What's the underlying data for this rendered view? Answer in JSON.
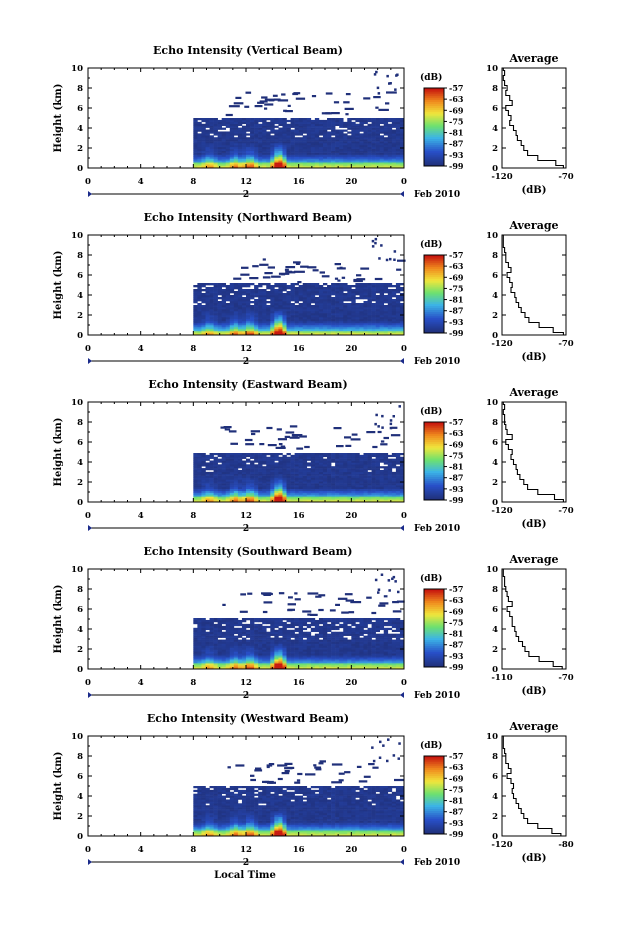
{
  "chart_data": [
    {
      "type": "heatmap",
      "title": "Echo Intensity (Vertical Beam)",
      "ylabel": "Height (km)",
      "y_ticks": [
        "0",
        "2",
        "4",
        "6",
        "8",
        "10"
      ],
      "x_ticks": [
        "0",
        "4",
        "8",
        "12",
        "16",
        "20",
        "0"
      ],
      "xlim": [
        0,
        24
      ],
      "ylim": [
        0,
        10
      ],
      "date_marker": "2",
      "date_label": "Feb 2010",
      "data_start_hour": 8,
      "echo_top_km": 5.0,
      "colorbar": {
        "label": "(dB)",
        "ticks": [
          "-57",
          "-63",
          "-69",
          "-75",
          "-81",
          "-87",
          "-93",
          "-99"
        ],
        "range": [
          -99,
          -57
        ]
      },
      "profile": {
        "title": "Average",
        "xlabel": "(dB)",
        "x_ticks": [
          "-120",
          "-70"
        ],
        "y_ticks": [
          "0",
          "2",
          "4",
          "6",
          "8",
          "10"
        ],
        "xlim": [
          -120,
          -70
        ],
        "ylim": [
          0,
          10
        ],
        "height": [
          0,
          0.5,
          1,
          1.5,
          2,
          2.5,
          3,
          3.5,
          4,
          4.5,
          5,
          5.5,
          6,
          6.5,
          7,
          7.5,
          8,
          8.5,
          9,
          9.5,
          10
        ],
        "value": [
          -72,
          -78,
          -92,
          -100,
          -103,
          -105,
          -108,
          -109,
          -111,
          -114,
          -113,
          -115,
          -117,
          -112,
          -114,
          -117,
          -116,
          -118,
          -119,
          -118,
          -119
        ]
      }
    },
    {
      "type": "heatmap",
      "title": "Echo Intensity (Northward Beam)",
      "ylabel": "Height (km)",
      "y_ticks": [
        "0",
        "2",
        "4",
        "6",
        "8",
        "10"
      ],
      "x_ticks": [
        "0",
        "4",
        "8",
        "12",
        "16",
        "20",
        "0"
      ],
      "xlim": [
        0,
        24
      ],
      "ylim": [
        0,
        10
      ],
      "date_marker": "2",
      "date_label": "Feb 2010",
      "data_start_hour": 8,
      "echo_top_km": 5.2,
      "colorbar": {
        "label": "(dB)",
        "ticks": [
          "-57",
          "-63",
          "-69",
          "-75",
          "-81",
          "-87",
          "-93",
          "-99"
        ],
        "range": [
          -99,
          -57
        ]
      },
      "profile": {
        "title": "Average",
        "xlabel": "(dB)",
        "x_ticks": [
          "-120",
          "-70"
        ],
        "y_ticks": [
          "0",
          "2",
          "4",
          "6",
          "8",
          "10"
        ],
        "xlim": [
          -120,
          -70
        ],
        "ylim": [
          0,
          10
        ],
        "height": [
          0,
          0.5,
          1,
          1.5,
          2,
          2.5,
          3,
          3.5,
          4,
          4.5,
          5,
          5.5,
          6,
          6.5,
          7,
          7.5,
          8,
          8.5,
          9,
          9.5,
          10
        ],
        "value": [
          -72,
          -80,
          -91,
          -99,
          -102,
          -105,
          -107,
          -109,
          -110,
          -113,
          -112,
          -114,
          -116,
          -113,
          -115,
          -117,
          -117,
          -118,
          -119,
          -119,
          -119
        ]
      }
    },
    {
      "type": "heatmap",
      "title": "Echo Intensity (Eastward Beam)",
      "ylabel": "Height (km)",
      "y_ticks": [
        "0",
        "2",
        "4",
        "6",
        "8",
        "10"
      ],
      "x_ticks": [
        "0",
        "4",
        "8",
        "12",
        "16",
        "20",
        "0"
      ],
      "xlim": [
        0,
        24
      ],
      "ylim": [
        0,
        10
      ],
      "date_marker": "2",
      "date_label": "Feb 2010",
      "data_start_hour": 8,
      "echo_top_km": 4.9,
      "colorbar": {
        "label": "(dB)",
        "ticks": [
          "-57",
          "-63",
          "-69",
          "-75",
          "-81",
          "-87",
          "-93",
          "-99"
        ],
        "range": [
          -99,
          -57
        ]
      },
      "profile": {
        "title": "Average",
        "xlabel": "(dB)",
        "x_ticks": [
          "-120",
          "-70"
        ],
        "y_ticks": [
          "0",
          "2",
          "4",
          "6",
          "8",
          "10"
        ],
        "xlim": [
          -120,
          -70
        ],
        "ylim": [
          0,
          10
        ],
        "height": [
          0,
          0.5,
          1,
          1.5,
          2,
          2.5,
          3,
          3.5,
          4,
          4.5,
          5,
          5.5,
          6,
          6.5,
          7,
          7.5,
          8,
          8.5,
          9,
          9.5,
          10
        ],
        "value": [
          -72,
          -79,
          -92,
          -100,
          -103,
          -106,
          -108,
          -109,
          -111,
          -113,
          -112,
          -115,
          -117,
          -112,
          -116,
          -117,
          -118,
          -118,
          -119,
          -118,
          -119
        ]
      }
    },
    {
      "type": "heatmap",
      "title": "Echo Intensity (Southward Beam)",
      "ylabel": "Height (km)",
      "y_ticks": [
        "0",
        "2",
        "4",
        "6",
        "8",
        "10"
      ],
      "x_ticks": [
        "0",
        "4",
        "8",
        "12",
        "16",
        "20",
        "0"
      ],
      "xlim": [
        0,
        24
      ],
      "ylim": [
        0,
        10
      ],
      "date_marker": "2",
      "date_label": "Feb 2010",
      "data_start_hour": 8,
      "echo_top_km": 5.1,
      "colorbar": {
        "label": "(dB)",
        "ticks": [
          "-57",
          "-63",
          "-69",
          "-75",
          "-81",
          "-87",
          "-93",
          "-99"
        ],
        "range": [
          -99,
          -57
        ]
      },
      "profile": {
        "title": "Average",
        "xlabel": "(dB)",
        "x_ticks": [
          "-110",
          "-70"
        ],
        "y_ticks": [
          "0",
          "2",
          "4",
          "6",
          "8",
          "10"
        ],
        "xlim": [
          -120,
          -70
        ],
        "ylim": [
          0,
          10
        ],
        "height": [
          0,
          0.5,
          1,
          1.5,
          2,
          2.5,
          3,
          3.5,
          4,
          4.5,
          5,
          5.5,
          6,
          6.5,
          7,
          7.5,
          8,
          8.5,
          9,
          9.5,
          10
        ],
        "value": [
          -73,
          -80,
          -91,
          -99,
          -102,
          -104,
          -107,
          -109,
          -110,
          -112,
          -112,
          -114,
          -116,
          -112,
          -115,
          -116,
          -117,
          -118,
          -118,
          -119,
          -119
        ]
      }
    },
    {
      "type": "heatmap",
      "title": "Echo Intensity (Westward Beam)",
      "ylabel": "Height (km)",
      "y_ticks": [
        "0",
        "2",
        "4",
        "6",
        "8",
        "10"
      ],
      "x_ticks": [
        "0",
        "4",
        "8",
        "12",
        "16",
        "20",
        "0"
      ],
      "xlim": [
        0,
        24
      ],
      "ylim": [
        0,
        10
      ],
      "date_marker": "2",
      "date_label": "Feb 2010",
      "data_start_hour": 8,
      "echo_top_km": 5.0,
      "colorbar": {
        "label": "(dB)",
        "ticks": [
          "-57",
          "-63",
          "-69",
          "-75",
          "-81",
          "-87",
          "-93",
          "-99"
        ],
        "range": [
          -99,
          -57
        ]
      },
      "profile": {
        "title": "Average",
        "xlabel": "(dB)",
        "x_ticks": [
          "-120",
          "-80"
        ],
        "y_ticks": [
          "0",
          "2",
          "4",
          "6",
          "8",
          "10"
        ],
        "xlim": [
          -120,
          -70
        ],
        "ylim": [
          0,
          10
        ],
        "height": [
          0,
          0.5,
          1,
          1.5,
          2,
          2.5,
          3,
          3.5,
          4,
          4.5,
          5,
          5.5,
          6,
          6.5,
          7,
          7.5,
          8,
          8.5,
          9,
          9.5,
          10
        ],
        "value": [
          -74,
          -81,
          -92,
          -100,
          -103,
          -105,
          -107,
          -109,
          -111,
          -112,
          -111,
          -113,
          -116,
          -113,
          -115,
          -117,
          -117,
          -118,
          -119,
          -119,
          -119
        ]
      }
    }
  ],
  "footer": {
    "xlabel": "Local Time"
  },
  "colors": {
    "dark_blue": "#20307a",
    "mid_blue": "#2f5fd0",
    "cyan": "#3fd0e0",
    "green": "#7be06a",
    "yellow": "#f0e040",
    "orange": "#f09020",
    "red": "#d02010"
  }
}
